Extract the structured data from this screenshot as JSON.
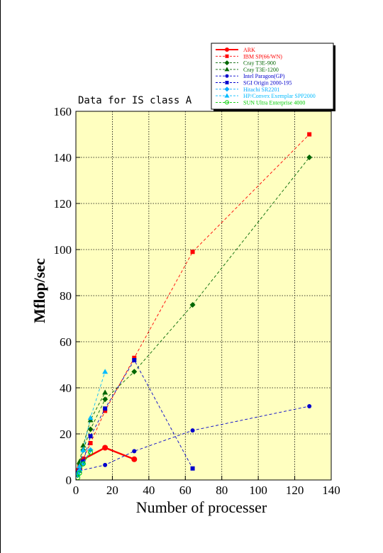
{
  "chart_data": {
    "type": "line",
    "title": "Data for IS class A",
    "xlabel": "Number of processer",
    "ylabel": "Mflop/sec",
    "xlim": [
      0,
      140
    ],
    "ylim": [
      0,
      160
    ],
    "xticks": [
      0,
      20,
      40,
      60,
      80,
      100,
      120,
      140
    ],
    "yticks": [
      0,
      20,
      40,
      60,
      80,
      100,
      120,
      140,
      160
    ],
    "grid": true,
    "legend_position": "top-right, above plot",
    "plot_background": "#ffffc0",
    "series": [
      {
        "name": "ARK",
        "color": "#ff0000",
        "marker": "circle",
        "style": "solid",
        "x": [
          1,
          2,
          4,
          16,
          32
        ],
        "y": [
          4,
          5,
          9,
          14,
          9
        ]
      },
      {
        "name": "IBM SP(66/WN)",
        "color": "#ff0000",
        "marker": "square",
        "style": "dashed",
        "x": [
          2,
          4,
          8,
          16,
          32,
          64,
          128
        ],
        "y": [
          6,
          9,
          16,
          30,
          53,
          99,
          150
        ]
      },
      {
        "name": "Cray T3E-900",
        "color": "#006600",
        "marker": "diamond",
        "style": "dashed",
        "x": [
          2,
          4,
          8,
          16,
          32,
          64,
          128
        ],
        "y": [
          7,
          13,
          22,
          35,
          47,
          76,
          140
        ]
      },
      {
        "name": "Cray T3E-1200",
        "color": "#006600",
        "marker": "triangle",
        "style": "dashed",
        "x": [
          2,
          4,
          8,
          16
        ],
        "y": [
          8,
          15,
          26,
          38
        ]
      },
      {
        "name": "Intel Paragon(GP)",
        "color": "#0000cc",
        "marker": "circle",
        "style": "dashed",
        "x": [
          1,
          2,
          16,
          32,
          64,
          128
        ],
        "y": [
          2,
          4,
          6.5,
          12.5,
          21.5,
          32
        ]
      },
      {
        "name": "SGI Origin 2000-195",
        "color": "#0000cc",
        "marker": "square",
        "style": "dashed",
        "x": [
          1,
          2,
          4,
          8,
          16,
          32,
          64
        ],
        "y": [
          3,
          4,
          8,
          19,
          31,
          52,
          5
        ]
      },
      {
        "name": "Hitachi SR2201",
        "color": "#00aaff",
        "marker": "diamond",
        "style": "dashed",
        "x": [
          1,
          2,
          4,
          8
        ],
        "y": [
          2,
          4,
          7,
          13
        ]
      },
      {
        "name": "HP/Convex Exemplar SPP2000",
        "color": "#00bbff",
        "marker": "triangle",
        "style": "dashed",
        "x": [
          1,
          2,
          4,
          8,
          16
        ],
        "y": [
          3,
          6,
          13,
          27,
          47
        ]
      },
      {
        "name": "SUN Ultra Enterprise 4000",
        "color": "#00cc00",
        "marker": "circle-open",
        "style": "dashed",
        "x": [
          1,
          2,
          4,
          8
        ],
        "y": [
          1,
          3,
          7,
          12
        ]
      }
    ]
  }
}
